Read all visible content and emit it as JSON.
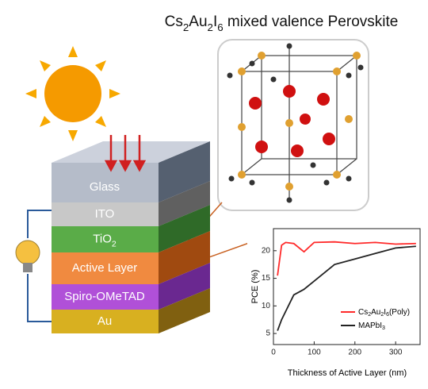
{
  "title": "Cs2Au2I6 mixed valence Perovskite",
  "layers": [
    "Glass",
    "ITO",
    "TiO2",
    "Active Layer",
    "Spiro-OMeTAD",
    "Au"
  ],
  "chart_data": {
    "type": "line",
    "x_label": "Thickness of Active Layer (nm)",
    "y_label": "PCE (%)",
    "x": [
      10,
      20,
      30,
      50,
      75,
      100,
      150,
      200,
      250,
      300,
      350
    ],
    "series": [
      {
        "name": "Cs2Au2I6(Poly)",
        "color": "#ff2a2a",
        "values": [
          15.5,
          21,
          21.5,
          21.3,
          19.8,
          21.5,
          21.6,
          21.3,
          21.5,
          21.2,
          21.3
        ]
      },
      {
        "name": "MAPbI3",
        "color": "#222222",
        "values": [
          5.5,
          7.5,
          9,
          12,
          13,
          14.5,
          17.5,
          18.5,
          19.5,
          20.5,
          20.8
        ]
      }
    ],
    "xlim": [
      0,
      360
    ],
    "ylim": [
      3,
      24
    ],
    "xticks": [
      0,
      100,
      200,
      300
    ],
    "yticks": [
      5,
      10,
      15,
      20
    ]
  }
}
